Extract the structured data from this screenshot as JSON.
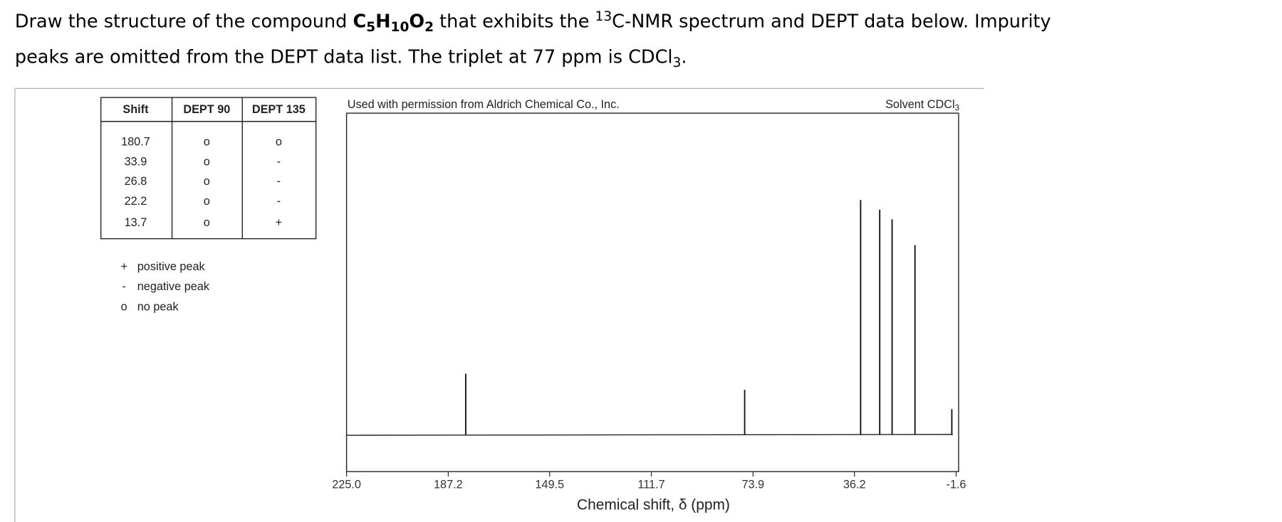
{
  "question": {
    "line1": [
      "Draw the structure of the compound ",
      "C",
      "5",
      "H",
      "10",
      "O",
      "2",
      " that exhibits the ",
      "13",
      "C-NMR spectrum and DEPT data below. Impurity"
    ],
    "line2": [
      "peaks are omitted from the DEPT data list. The triplet at 77 ppm is CDCl",
      "3",
      "."
    ]
  },
  "table": {
    "header": [
      "Shift",
      "DEPT 90",
      "DEPT 135"
    ],
    "rows": [
      [
        "180.7",
        "o",
        "o"
      ],
      [
        "33.9",
        "o",
        "-"
      ],
      [
        "26.8",
        "o",
        "-"
      ],
      [
        "22.2",
        "o",
        "-"
      ],
      [
        "13.7",
        "o",
        "+"
      ]
    ]
  },
  "legend": [
    [
      "+",
      "positive peak"
    ],
    [
      "-",
      "negative peak"
    ],
    [
      "o",
      "no peak"
    ]
  ],
  "spectrum": {
    "credit": "Used with permission from Aldrich Chemical Co., Inc.",
    "solvent": [
      "Solvent CDCl",
      "3"
    ],
    "xlabel": "Chemical shift, δ (ppm)",
    "xlim": [
      225,
      -1.6
    ],
    "xticks": [
      {
        "value": 225,
        "label": "225.0"
      },
      187.2,
      149.5,
      111.7,
      73.9,
      36.2,
      -1.6
    ],
    "peaks": [
      {
        "shift": 180.7,
        "intensity": 19
      },
      {
        "shift": 77,
        "intensity": 14
      },
      {
        "shift": 33.9,
        "intensity": 73
      },
      {
        "shift": 26.8,
        "intensity": 70
      },
      {
        "shift": 22.2,
        "intensity": 67
      },
      {
        "shift": 13.7,
        "intensity": 59
      },
      {
        "shift": 0,
        "intensity": 8
      }
    ]
  }
}
